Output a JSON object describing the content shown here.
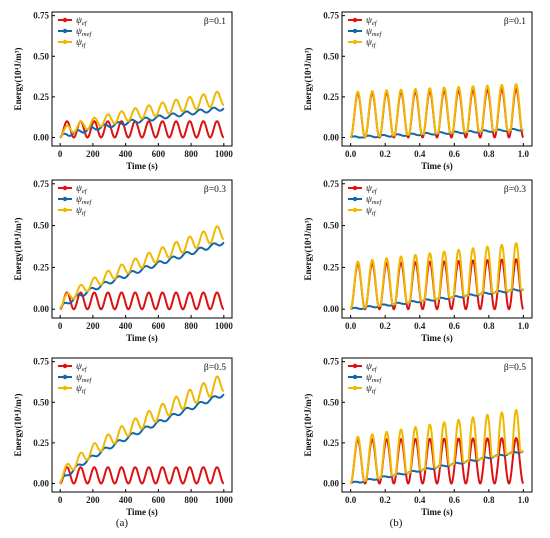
{
  "figure": {
    "captions": [
      "(a)",
      "(b)"
    ]
  },
  "colors": {
    "ef": "#dd1111",
    "mef": "#1166aa",
    "tf": "#f0b800",
    "axis": "#000000"
  },
  "chart_data": [
    {
      "id": "a1",
      "type": "line",
      "column": "a",
      "beta": 0.1,
      "annotation": "β=0.1",
      "xlabel": "Time (s)",
      "ylabel": "Energy(10⁴J/m³)",
      "xlim": [
        0,
        1000
      ],
      "ylim": [
        0,
        0.75
      ],
      "xticks": [
        "0",
        "200",
        "400",
        "600",
        "800",
        "1000"
      ],
      "yticks": [
        "0.00",
        "0.25",
        "0.50",
        "0.75"
      ],
      "legend": {
        "position": "top-left",
        "entries": [
          [
            "ψ",
            "ef"
          ],
          [
            "ψ",
            "mef"
          ],
          [
            "ψ",
            "tf"
          ]
        ]
      },
      "series": [
        {
          "key": "ef",
          "cycles": 12,
          "x_start": 0,
          "x_end": 1000,
          "peak": [
            0.1,
            0.1
          ]
        },
        {
          "key": "mef",
          "x_start": 0,
          "x_end": 1000,
          "end_value": 0.18
        },
        {
          "key": "tf",
          "cycles": 12,
          "x_start": 0,
          "x_end": 1000,
          "peak": [
            0.1,
            0.28
          ]
        }
      ]
    },
    {
      "id": "b1",
      "type": "line",
      "column": "b",
      "beta": 0.1,
      "annotation": "β=0.1",
      "xlabel": "Time (s)",
      "ylabel": "Energy(10⁴J/m³)",
      "xlim": [
        0,
        1.0
      ],
      "ylim": [
        0,
        0.75
      ],
      "xticks": [
        "0.0",
        "0.2",
        "0.4",
        "0.6",
        "0.8",
        "1.0"
      ],
      "yticks": [
        "0.00",
        "0.25",
        "0.50",
        "0.75"
      ],
      "legend": {
        "position": "top-left",
        "entries": [
          [
            "ψ",
            "ef"
          ],
          [
            "ψ",
            "mef"
          ],
          [
            "ψ",
            "tf"
          ]
        ]
      },
      "series": [
        {
          "key": "ef",
          "cycles": 12,
          "x_start": 0,
          "x_end": 1.0,
          "peak": [
            0.27,
            0.3
          ]
        },
        {
          "key": "mef",
          "x_start": 0,
          "x_end": 1.0,
          "end_value": 0.05
        },
        {
          "key": "tf",
          "cycles": 12,
          "x_start": 0,
          "x_end": 1.0,
          "peak": [
            0.28,
            0.33
          ]
        }
      ]
    },
    {
      "id": "a2",
      "type": "line",
      "column": "a",
      "beta": 0.3,
      "annotation": "β=0.3",
      "xlabel": "Time (s)",
      "ylabel": "Energy(10⁴J/m³)",
      "xlim": [
        0,
        1000
      ],
      "ylim": [
        0,
        0.75
      ],
      "xticks": [
        "0",
        "200",
        "400",
        "600",
        "800",
        "1000"
      ],
      "yticks": [
        "0.00",
        "0.25",
        "0.50",
        "0.75"
      ],
      "legend": {
        "position": "top-left",
        "entries": [
          [
            "ψ",
            "ef"
          ],
          [
            "ψ",
            "mef"
          ],
          [
            "ψ",
            "tf"
          ]
        ]
      },
      "series": [
        {
          "key": "ef",
          "cycles": 12,
          "x_start": 0,
          "x_end": 1000,
          "peak": [
            0.1,
            0.1
          ]
        },
        {
          "key": "mef",
          "x_start": 0,
          "x_end": 1000,
          "end_value": 0.4
        },
        {
          "key": "tf",
          "cycles": 12,
          "x_start": 0,
          "x_end": 1000,
          "peak": [
            0.1,
            0.48
          ]
        }
      ]
    },
    {
      "id": "b2",
      "type": "line",
      "column": "b",
      "beta": 0.3,
      "annotation": "β=0.3",
      "xlabel": "Time (s)",
      "ylabel": "Energy(10⁴J/m³)",
      "xlim": [
        0,
        1.0
      ],
      "ylim": [
        0,
        0.75
      ],
      "xticks": [
        "0.0",
        "0.2",
        "0.4",
        "0.6",
        "0.8",
        "1.0"
      ],
      "yticks": [
        "0.00",
        "0.25",
        "0.50",
        "0.75"
      ],
      "legend": {
        "position": "top-left",
        "entries": [
          [
            "ψ",
            "ef"
          ],
          [
            "ψ",
            "mef"
          ],
          [
            "ψ",
            "tf"
          ]
        ]
      },
      "series": [
        {
          "key": "ef",
          "cycles": 12,
          "x_start": 0,
          "x_end": 1.0,
          "peak": [
            0.27,
            0.3
          ]
        },
        {
          "key": "mef",
          "x_start": 0,
          "x_end": 1.0,
          "end_value": 0.12
        },
        {
          "key": "tf",
          "cycles": 12,
          "x_start": 0,
          "x_end": 1.0,
          "peak": [
            0.28,
            0.4
          ]
        }
      ]
    },
    {
      "id": "a3",
      "type": "line",
      "column": "a",
      "beta": 0.5,
      "annotation": "β=0.5",
      "xlabel": "Time (s)",
      "ylabel": "Energy(10⁴J/m³)",
      "xlim": [
        0,
        1000
      ],
      "ylim": [
        0,
        0.75
      ],
      "xticks": [
        "0",
        "200",
        "400",
        "600",
        "800",
        "1000"
      ],
      "yticks": [
        "0.00",
        "0.25",
        "0.50",
        "0.75"
      ],
      "legend": {
        "position": "top-left",
        "entries": [
          [
            "ψ",
            "ef"
          ],
          [
            "ψ",
            "mef"
          ],
          [
            "ψ",
            "tf"
          ]
        ]
      },
      "series": [
        {
          "key": "ef",
          "cycles": 12,
          "x_start": 0,
          "x_end": 1000,
          "peak": [
            0.1,
            0.1
          ]
        },
        {
          "key": "mef",
          "x_start": 0,
          "x_end": 1000,
          "end_value": 0.55
        },
        {
          "key": "tf",
          "cycles": 12,
          "x_start": 0,
          "x_end": 1000,
          "peak": [
            0.12,
            0.62
          ]
        }
      ]
    },
    {
      "id": "b3",
      "type": "line",
      "column": "b",
      "beta": 0.5,
      "annotation": "β=0.5",
      "xlabel": "Time (s)",
      "ylabel": "Energy(10⁴J/m³)",
      "xlim": [
        0,
        1.0
      ],
      "ylim": [
        0,
        0.75
      ],
      "xticks": [
        "0.0",
        "0.2",
        "0.4",
        "0.6",
        "0.8",
        "1.0"
      ],
      "yticks": [
        "0.00",
        "0.25",
        "0.50",
        "0.75"
      ],
      "legend": {
        "position": "top-left",
        "entries": [
          [
            "ψ",
            "ef"
          ],
          [
            "ψ",
            "mef"
          ],
          [
            "ψ",
            "tf"
          ]
        ]
      },
      "series": [
        {
          "key": "ef",
          "cycles": 12,
          "x_start": 0,
          "x_end": 1.0,
          "peak": [
            0.27,
            0.28
          ]
        },
        {
          "key": "mef",
          "x_start": 0,
          "x_end": 1.0,
          "end_value": 0.2
        },
        {
          "key": "tf",
          "cycles": 12,
          "x_start": 0,
          "x_end": 1.0,
          "peak": [
            0.28,
            0.46
          ]
        }
      ]
    }
  ]
}
